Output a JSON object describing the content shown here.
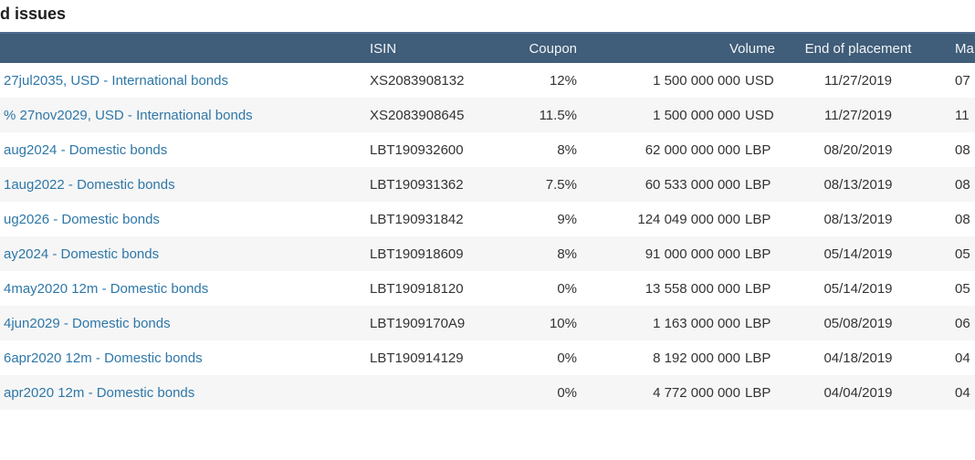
{
  "page": {
    "title": "d issues"
  },
  "table": {
    "columns": {
      "name": "",
      "isin": "ISIN",
      "coupon": "Coupon",
      "volume": "Volume",
      "end_of_placement": "End of placement",
      "maturity": "Ma"
    },
    "rows": [
      {
        "name": "27jul2035, USD - International bonds",
        "isin": "XS2083908132",
        "coupon": "12%",
        "volume": "1 500 000 000",
        "currency": "USD",
        "end_of_placement": "11/27/2019",
        "maturity": "07"
      },
      {
        "name": "% 27nov2029, USD - International bonds",
        "isin": "XS2083908645",
        "coupon": "11.5%",
        "volume": "1 500 000 000",
        "currency": "USD",
        "end_of_placement": "11/27/2019",
        "maturity": "11"
      },
      {
        "name": "aug2024 - Domestic bonds",
        "isin": "LBT190932600",
        "coupon": "8%",
        "volume": "62 000 000 000",
        "currency": "LBP",
        "end_of_placement": "08/20/2019",
        "maturity": "08"
      },
      {
        "name": "1aug2022 - Domestic bonds",
        "isin": "LBT190931362",
        "coupon": "7.5%",
        "volume": "60 533 000 000",
        "currency": "LBP",
        "end_of_placement": "08/13/2019",
        "maturity": "08"
      },
      {
        "name": "ug2026 - Domestic bonds",
        "isin": "LBT190931842",
        "coupon": "9%",
        "volume": "124 049 000 000",
        "currency": "LBP",
        "end_of_placement": "08/13/2019",
        "maturity": "08"
      },
      {
        "name": "ay2024 - Domestic bonds",
        "isin": "LBT190918609",
        "coupon": "8%",
        "volume": "91 000 000 000",
        "currency": "LBP",
        "end_of_placement": "05/14/2019",
        "maturity": "05"
      },
      {
        "name": "4may2020 12m - Domestic bonds",
        "isin": "LBT190918120",
        "coupon": "0%",
        "volume": "13 558 000 000",
        "currency": "LBP",
        "end_of_placement": "05/14/2019",
        "maturity": "05"
      },
      {
        "name": "4jun2029 - Domestic bonds",
        "isin": "LBT1909170A9",
        "coupon": "10%",
        "volume": "1 163 000 000",
        "currency": "LBP",
        "end_of_placement": "05/08/2019",
        "maturity": "06"
      },
      {
        "name": "6apr2020 12m - Domestic bonds",
        "isin": "LBT190914129",
        "coupon": "0%",
        "volume": "8 192 000 000",
        "currency": "LBP",
        "end_of_placement": "04/18/2019",
        "maturity": "04"
      },
      {
        "name": "apr2020 12m - Domestic bonds",
        "isin": "",
        "coupon": "0%",
        "volume": "4 772 000 000",
        "currency": "LBP",
        "end_of_placement": "04/04/2019",
        "maturity": "04"
      }
    ]
  }
}
